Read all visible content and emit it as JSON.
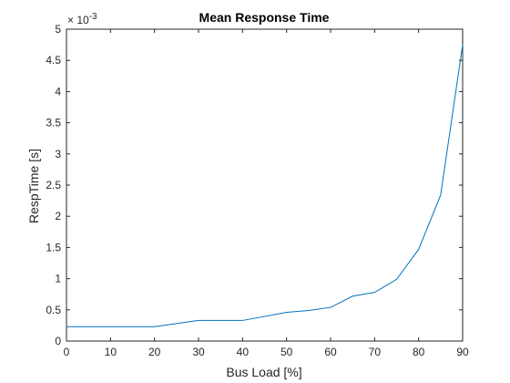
{
  "chart_data": {
    "type": "line",
    "title": "Mean Response Time",
    "xlabel": "Bus Load [%]",
    "ylabel": "RespTime [s]",
    "exponent_label": "× 10",
    "exponent_power": "-3",
    "xlim": [
      0,
      90
    ],
    "ylim": [
      0,
      5
    ],
    "xticks": [
      0,
      10,
      20,
      30,
      40,
      50,
      60,
      70,
      80,
      90
    ],
    "xtick_labels": [
      "0",
      "10",
      "20",
      "30",
      "40",
      "50",
      "60",
      "70",
      "80",
      "90"
    ],
    "yticks": [
      0,
      0.5,
      1,
      1.5,
      2,
      2.5,
      3,
      3.5,
      4,
      4.5,
      5
    ],
    "ytick_labels": [
      "0",
      "0.5",
      "1",
      "1.5",
      "2",
      "2.5",
      "3",
      "3.5",
      "4",
      "4.5",
      "5"
    ],
    "grid": false,
    "series": [
      {
        "color": "#0072BD",
        "x": [
          0,
          10,
          20,
          30,
          40,
          50,
          55,
          60,
          65,
          70,
          75,
          80,
          85,
          90
        ],
        "y": [
          0.23,
          0.23,
          0.23,
          0.33,
          0.33,
          0.46,
          0.49,
          0.54,
          0.72,
          0.78,
          0.99,
          1.47,
          2.34,
          4.75
        ]
      }
    ]
  }
}
